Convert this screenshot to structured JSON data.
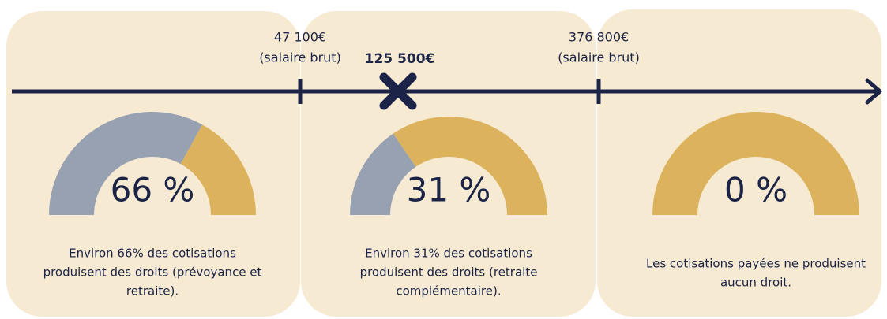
{
  "axis": {
    "thresholds": [
      {
        "amount": "47 100€",
        "note": "(salaire brut)"
      },
      {
        "amount": "376 800€",
        "note": "(salaire brut)"
      }
    ],
    "marker": "125 500€"
  },
  "panels": [
    {
      "value": 66,
      "value_label": "66 %",
      "text": [
        "Environ 66% des cotisations",
        "produisent des droits (prévoyance et",
        "retraite)."
      ]
    },
    {
      "value": 31,
      "value_label": "31 %",
      "text": [
        "Environ 31% des cotisations",
        "produisent des droits (retraite",
        "complémentaire)."
      ]
    },
    {
      "value": 0,
      "value_label": "0 %",
      "text": [
        "Les cotisations payées ne produisent",
        "aucun droit."
      ]
    }
  ]
}
